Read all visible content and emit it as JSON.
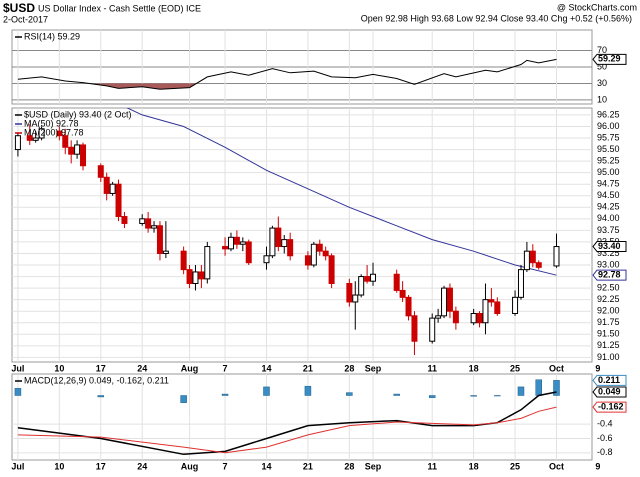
{
  "header": {
    "symbol": "$USD",
    "name": "US Dollar Index - Cash Settle (EOD) ICE",
    "date": "2-Oct-2017",
    "source": "@ StockCharts.com",
    "quote": "Open 92.98 High 93.68 Low 92.94 Close 93.40 Chg +0.52 (+0.56%)"
  },
  "chart_data": [
    {
      "type": "line",
      "title": "RSI(14) 59.29",
      "color": "#000000",
      "fill_below": 30,
      "fill_color": "#a85a5a",
      "x": [
        "2017-07-03",
        "2017-07-07",
        "2017-07-11",
        "2017-07-14",
        "2017-07-18",
        "2017-07-20",
        "2017-07-24",
        "2017-07-27",
        "2017-08-01",
        "2017-08-04",
        "2017-08-08",
        "2017-08-11",
        "2017-08-15",
        "2017-08-18",
        "2017-08-22",
        "2017-08-25",
        "2017-08-29",
        "2017-09-01",
        "2017-09-05",
        "2017-09-08",
        "2017-09-13",
        "2017-09-15",
        "2017-09-20",
        "2017-09-22",
        "2017-09-26",
        "2017-09-27",
        "2017-09-29",
        "2017-10-02"
      ],
      "values": [
        35,
        38,
        33,
        31,
        27,
        24,
        26,
        23,
        25,
        38,
        44,
        40,
        48,
        43,
        45,
        38,
        37,
        41,
        36,
        29,
        42,
        38,
        46,
        44,
        53,
        58,
        55,
        59.29
      ],
      "xlim": [
        "2017-07-02",
        "2017-10-08"
      ],
      "ylim": [
        5,
        95
      ],
      "yticks": [
        10,
        30,
        50,
        70
      ],
      "grid": true
    },
    {
      "type": "candlestick",
      "title": "$USD (Daily) 93.40 (2 Oct)",
      "up_color": "#000000",
      "down_color": "#cc0000",
      "x": [
        "2017-07-03",
        "2017-07-05",
        "2017-07-06",
        "2017-07-07",
        "2017-07-10",
        "2017-07-11",
        "2017-07-12",
        "2017-07-13",
        "2017-07-14",
        "2017-07-17",
        "2017-07-18",
        "2017-07-19",
        "2017-07-20",
        "2017-07-21",
        "2017-07-24",
        "2017-07-25",
        "2017-07-26",
        "2017-07-27",
        "2017-07-28",
        "2017-07-31",
        "2017-08-01",
        "2017-08-02",
        "2017-08-03",
        "2017-08-04",
        "2017-08-07",
        "2017-08-08",
        "2017-08-09",
        "2017-08-10",
        "2017-08-11",
        "2017-08-14",
        "2017-08-15",
        "2017-08-16",
        "2017-08-17",
        "2017-08-18",
        "2017-08-21",
        "2017-08-22",
        "2017-08-23",
        "2017-08-24",
        "2017-08-25",
        "2017-08-28",
        "2017-08-29",
        "2017-08-30",
        "2017-08-31",
        "2017-09-01",
        "2017-09-05",
        "2017-09-06",
        "2017-09-07",
        "2017-09-08",
        "2017-09-11",
        "2017-09-12",
        "2017-09-13",
        "2017-09-14",
        "2017-09-15",
        "2017-09-18",
        "2017-09-19",
        "2017-09-20",
        "2017-09-21",
        "2017-09-22",
        "2017-09-25",
        "2017-09-26",
        "2017-09-27",
        "2017-09-28",
        "2017-09-29",
        "2017-10-02"
      ],
      "open": [
        95.5,
        95.8,
        95.7,
        95.75,
        95.9,
        95.8,
        95.55,
        95.4,
        95.6,
        95.15,
        94.9,
        94.55,
        94.75,
        94.05,
        93.9,
        94.0,
        93.8,
        93.85,
        93.25,
        93.3,
        92.9,
        92.6,
        92.85,
        92.7,
        93.4,
        93.35,
        93.6,
        93.45,
        93.5,
        93.05,
        93.2,
        93.8,
        93.4,
        93.55,
        93.2,
        93.0,
        93.45,
        93.3,
        93.2,
        92.6,
        92.2,
        92.35,
        92.75,
        92.65,
        92.8,
        92.45,
        92.3,
        91.9,
        91.35,
        91.85,
        91.9,
        92.5,
        92.0,
        91.75,
        91.95,
        91.75,
        92.25,
        92.2,
        91.95,
        92.3,
        92.9,
        93.3,
        93.05,
        92.98
      ],
      "high": [
        95.85,
        96.05,
        95.9,
        96.0,
        96.0,
        95.95,
        95.7,
        95.7,
        95.65,
        95.2,
        95.0,
        94.8,
        94.85,
        94.15,
        94.1,
        94.15,
        93.95,
        93.95,
        93.95,
        93.4,
        93.0,
        93.0,
        93.0,
        93.5,
        93.6,
        93.7,
        93.75,
        93.6,
        93.55,
        93.4,
        93.85,
        94.05,
        93.65,
        93.7,
        93.3,
        93.5,
        93.55,
        93.4,
        93.25,
        92.7,
        92.65,
        92.8,
        93.0,
        93.05,
        92.9,
        92.65,
        92.35,
        92.0,
        91.95,
        92.05,
        92.55,
        92.6,
        92.1,
        92.05,
        92.0,
        92.6,
        92.5,
        92.3,
        92.45,
        93.0,
        93.5,
        93.45,
        93.1,
        93.68
      ],
      "low": [
        95.35,
        95.6,
        95.65,
        95.7,
        95.7,
        95.4,
        95.2,
        95.3,
        95.05,
        94.8,
        94.4,
        94.5,
        93.95,
        93.8,
        93.85,
        93.7,
        93.7,
        93.1,
        93.15,
        92.8,
        92.5,
        92.45,
        92.5,
        92.6,
        93.2,
        93.3,
        93.35,
        93.3,
        93.0,
        92.9,
        93.15,
        93.3,
        93.25,
        93.1,
        92.9,
        92.95,
        93.2,
        93.1,
        92.5,
        92.1,
        91.6,
        92.3,
        92.6,
        92.55,
        92.4,
        92.2,
        91.8,
        91.05,
        91.3,
        91.75,
        91.85,
        91.85,
        91.6,
        91.7,
        91.65,
        91.5,
        92.1,
        91.9,
        91.9,
        92.25,
        92.85,
        92.95,
        92.9,
        92.94
      ],
      "close": [
        95.8,
        95.7,
        95.75,
        95.95,
        95.8,
        95.55,
        95.4,
        95.6,
        95.15,
        94.9,
        94.55,
        94.75,
        94.05,
        93.9,
        94.0,
        93.8,
        93.85,
        93.25,
        93.3,
        92.9,
        92.6,
        92.85,
        92.7,
        93.4,
        93.35,
        93.6,
        93.45,
        93.5,
        93.05,
        93.2,
        93.8,
        93.4,
        93.55,
        93.2,
        93.0,
        93.45,
        93.3,
        93.2,
        92.6,
        92.2,
        92.35,
        92.75,
        92.65,
        92.8,
        92.45,
        92.3,
        91.9,
        91.35,
        91.85,
        91.9,
        92.5,
        92.0,
        91.75,
        91.95,
        91.75,
        92.25,
        92.2,
        91.95,
        92.3,
        92.9,
        93.3,
        93.05,
        92.95,
        93.4
      ],
      "series": [
        {
          "name": "MA(50) 92.78",
          "color": "#333399",
          "x": [
            "2017-07-19",
            "2017-07-24",
            "2017-07-31",
            "2017-08-07",
            "2017-08-14",
            "2017-08-21",
            "2017-08-28",
            "2017-09-05",
            "2017-09-11",
            "2017-09-18",
            "2017-09-25",
            "2017-10-02"
          ],
          "values": [
            96.55,
            96.25,
            96.0,
            95.55,
            95.05,
            94.65,
            94.25,
            93.85,
            93.55,
            93.3,
            93.0,
            92.78
          ]
        }
      ],
      "extra_legend": [
        {
          "name": "MA(200) 97.78",
          "color": "#cc0000"
        }
      ],
      "tags": [
        {
          "value": 93.4,
          "label": "93.40",
          "color": "#000000"
        },
        {
          "value": 92.78,
          "label": "92.78",
          "color": "#333399"
        }
      ],
      "xlim": [
        "2017-07-02",
        "2017-10-08"
      ],
      "ylim": [
        90.9,
        96.4
      ],
      "xticks": [
        {
          "value": "2017-07-03",
          "label": "Jul"
        },
        {
          "value": "2017-07-10",
          "label": "10"
        },
        {
          "value": "2017-07-17",
          "label": "17"
        },
        {
          "value": "2017-07-24",
          "label": "24"
        },
        {
          "value": "2017-08-01",
          "label": "Aug"
        },
        {
          "value": "2017-08-07",
          "label": "7"
        },
        {
          "value": "2017-08-14",
          "label": "14"
        },
        {
          "value": "2017-08-21",
          "label": "21"
        },
        {
          "value": "2017-08-28",
          "label": "28"
        },
        {
          "value": "2017-09-01",
          "label": "Sep"
        },
        {
          "value": "2017-09-11",
          "label": "11"
        },
        {
          "value": "2017-09-18",
          "label": "18"
        },
        {
          "value": "2017-09-25",
          "label": "25"
        },
        {
          "value": "2017-10-02",
          "label": "Oct"
        },
        {
          "value": "2017-10-09",
          "label": "9"
        }
      ],
      "yticks": [
        {
          "value": 91,
          "label": "91.00"
        },
        91.25,
        {
          "value": 91.5,
          "label": "91.50"
        },
        91.75,
        {
          "value": 92,
          "label": "92.00"
        },
        92.25,
        {
          "value": 92.5,
          "label": "92.50"
        },
        92.75,
        {
          "value": 93,
          "label": "93.00"
        },
        93.25,
        {
          "value": 93.5,
          "label": "93.50"
        },
        93.75,
        {
          "value": 94,
          "label": "94.00"
        },
        94.25,
        {
          "value": 94.5,
          "label": "94.50"
        },
        94.75,
        {
          "value": 95,
          "label": "95.00"
        },
        95.25,
        {
          "value": 95.5,
          "label": "95.50"
        },
        95.75,
        {
          "value": 96,
          "label": "96.00"
        },
        96.25
      ],
      "grid": true
    },
    {
      "type": "macd",
      "title": "MACD(12,26,9) 0.049, -0.162, 0.211",
      "x": [
        "2017-07-03",
        "2017-07-17",
        "2017-07-31",
        "2017-08-07",
        "2017-08-14",
        "2017-08-21",
        "2017-08-28",
        "2017-09-05",
        "2017-09-11",
        "2017-09-18",
        "2017-09-22",
        "2017-09-26",
        "2017-09-29",
        "2017-10-02"
      ],
      "series": [
        {
          "name": "MACD",
          "color": "#000000",
          "values": [
            -0.45,
            -0.6,
            -0.82,
            -0.78,
            -0.6,
            -0.42,
            -0.38,
            -0.35,
            -0.42,
            -0.42,
            -0.38,
            -0.2,
            0.0,
            0.049
          ]
        },
        {
          "name": "Signal",
          "color": "#e03030",
          "values": [
            -0.55,
            -0.58,
            -0.72,
            -0.8,
            -0.72,
            -0.55,
            -0.42,
            -0.37,
            -0.39,
            -0.41,
            -0.38,
            -0.32,
            -0.22,
            -0.162
          ]
        },
        {
          "name": "Histogram",
          "color": "#3a8cc4",
          "values": [
            0.1,
            -0.02,
            -0.1,
            0.02,
            0.12,
            0.13,
            0.04,
            0.02,
            -0.03,
            -0.01,
            0.0,
            0.12,
            0.22,
            0.211
          ]
        }
      ],
      "xlim": [
        "2017-07-02",
        "2017-10-08"
      ],
      "ylim": [
        -0.9,
        0.3
      ],
      "yticks": [
        -0.8,
        -0.6,
        -0.4
      ],
      "xticks": [
        {
          "value": "2017-07-03",
          "label": "Jul"
        },
        {
          "value": "2017-07-10",
          "label": "10"
        },
        {
          "value": "2017-07-17",
          "label": "17"
        },
        {
          "value": "2017-07-24",
          "label": "24"
        },
        {
          "value": "2017-08-01",
          "label": "Aug"
        },
        {
          "value": "2017-08-07",
          "label": "7"
        },
        {
          "value": "2017-08-14",
          "label": "14"
        },
        {
          "value": "2017-08-21",
          "label": "21"
        },
        {
          "value": "2017-08-28",
          "label": "28"
        },
        {
          "value": "2017-09-01",
          "label": "Sep"
        },
        {
          "value": "2017-09-11",
          "label": "11"
        },
        {
          "value": "2017-09-18",
          "label": "18"
        },
        {
          "value": "2017-09-25",
          "label": "25"
        },
        {
          "value": "2017-10-02",
          "label": "Oct"
        },
        {
          "value": "2017-10-09",
          "label": "9"
        }
      ],
      "grid": true
    }
  ]
}
